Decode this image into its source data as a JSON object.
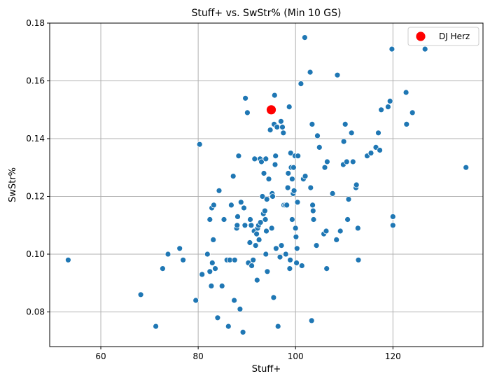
{
  "chart_data": {
    "type": "scatter",
    "title": "Stuff+ vs. SwStr% (Min 10 GS)",
    "xlabel": "Stuff+",
    "ylabel": "SwStr%",
    "xlim": [
      49.5,
      138.5
    ],
    "ylim": [
      0.068,
      0.18
    ],
    "xticks": [
      60,
      80,
      100,
      120
    ],
    "yticks": [
      0.08,
      0.1,
      0.12,
      0.14,
      0.16,
      0.18
    ],
    "ytick_labels": [
      "0.08",
      "0.10",
      "0.12",
      "0.14",
      "0.16",
      "0.18"
    ],
    "grid": true,
    "legend_position": "top-right",
    "point_color": "#1f77b4",
    "highlight_color": "#ff0000",
    "highlight": {
      "name": "DJ Herz",
      "x": 95.0,
      "y": 0.15
    },
    "points": [
      [
        53.3,
        0.098
      ],
      [
        68.2,
        0.086
      ],
      [
        71.3,
        0.075
      ],
      [
        72.7,
        0.095
      ],
      [
        73.8,
        0.1
      ],
      [
        76.2,
        0.102
      ],
      [
        76.9,
        0.098
      ],
      [
        79.5,
        0.084
      ],
      [
        80.3,
        0.138
      ],
      [
        80.8,
        0.093
      ],
      [
        81.9,
        0.1
      ],
      [
        82.4,
        0.094
      ],
      [
        82.4,
        0.112
      ],
      [
        82.7,
        0.089
      ],
      [
        82.8,
        0.116
      ],
      [
        82.9,
        0.097
      ],
      [
        83.1,
        0.105
      ],
      [
        83.2,
        0.117
      ],
      [
        83.5,
        0.095
      ],
      [
        84.0,
        0.078
      ],
      [
        84.3,
        0.122
      ],
      [
        84.9,
        0.089
      ],
      [
        85.3,
        0.112
      ],
      [
        85.9,
        0.098
      ],
      [
        86.2,
        0.075
      ],
      [
        86.5,
        0.098
      ],
      [
        86.8,
        0.117
      ],
      [
        87.2,
        0.127
      ],
      [
        87.4,
        0.084
      ],
      [
        87.5,
        0.098
      ],
      [
        87.9,
        0.109
      ],
      [
        88.0,
        0.11
      ],
      [
        88.1,
        0.113
      ],
      [
        88.3,
        0.134
      ],
      [
        88.6,
        0.081
      ],
      [
        88.8,
        0.118
      ],
      [
        89.2,
        0.073
      ],
      [
        89.4,
        0.116
      ],
      [
        89.6,
        0.11
      ],
      [
        89.7,
        0.154
      ],
      [
        90.1,
        0.149
      ],
      [
        90.3,
        0.097
      ],
      [
        90.6,
        0.104
      ],
      [
        90.7,
        0.112
      ],
      [
        90.9,
        0.11
      ],
      [
        91.0,
        0.096
      ],
      [
        91.3,
        0.098
      ],
      [
        91.5,
        0.108
      ],
      [
        91.6,
        0.133
      ],
      [
        91.8,
        0.103
      ],
      [
        92.0,
        0.107
      ],
      [
        92.1,
        0.091
      ],
      [
        92.2,
        0.109
      ],
      [
        92.4,
        0.11
      ],
      [
        92.5,
        0.105
      ],
      [
        92.7,
        0.133
      ],
      [
        92.8,
        0.111
      ],
      [
        93.0,
        0.132
      ],
      [
        93.2,
        0.12
      ],
      [
        93.4,
        0.114
      ],
      [
        93.5,
        0.128
      ],
      [
        93.7,
        0.115
      ],
      [
        93.8,
        0.112
      ],
      [
        93.9,
        0.133
      ],
      [
        93.9,
        0.1
      ],
      [
        94.0,
        0.108
      ],
      [
        94.1,
        0.119
      ],
      [
        94.2,
        0.094
      ],
      [
        94.5,
        0.126
      ],
      [
        94.8,
        0.143
      ],
      [
        95.1,
        0.109
      ],
      [
        95.2,
        0.121
      ],
      [
        95.3,
        0.12
      ],
      [
        95.5,
        0.085
      ],
      [
        95.6,
        0.145
      ],
      [
        95.7,
        0.155
      ],
      [
        95.8,
        0.131
      ],
      [
        95.9,
        0.134
      ],
      [
        96.0,
        0.102
      ],
      [
        96.2,
        0.144
      ],
      [
        96.4,
        0.075
      ],
      [
        96.8,
        0.099
      ],
      [
        97.0,
        0.146
      ],
      [
        97.1,
        0.103
      ],
      [
        97.3,
        0.144
      ],
      [
        97.5,
        0.142
      ],
      [
        97.6,
        0.117
      ],
      [
        97.9,
        0.117
      ],
      [
        98.0,
        0.1
      ],
      [
        98.2,
        0.117
      ],
      [
        98.4,
        0.123
      ],
      [
        98.5,
        0.128
      ],
      [
        98.7,
        0.151
      ],
      [
        98.8,
        0.095
      ],
      [
        98.9,
        0.098
      ],
      [
        99.0,
        0.135
      ],
      [
        99.1,
        0.13
      ],
      [
        99.3,
        0.112
      ],
      [
        99.3,
        0.126
      ],
      [
        99.5,
        0.121
      ],
      [
        99.6,
        0.13
      ],
      [
        99.7,
        0.122
      ],
      [
        99.7,
        0.122
      ],
      [
        99.9,
        0.134
      ],
      [
        100.0,
        0.109
      ],
      [
        100.1,
        0.106
      ],
      [
        100.2,
        0.097
      ],
      [
        100.3,
        0.102
      ],
      [
        100.4,
        0.118
      ],
      [
        100.5,
        0.134
      ],
      [
        101.1,
        0.159
      ],
      [
        101.3,
        0.096
      ],
      [
        101.6,
        0.126
      ],
      [
        101.9,
        0.175
      ],
      [
        102.0,
        0.127
      ],
      [
        103.0,
        0.163
      ],
      [
        103.1,
        0.123
      ],
      [
        103.3,
        0.077
      ],
      [
        103.4,
        0.145
      ],
      [
        103.5,
        0.117
      ],
      [
        103.6,
        0.115
      ],
      [
        103.7,
        0.112
      ],
      [
        104.3,
        0.103
      ],
      [
        104.5,
        0.141
      ],
      [
        104.9,
        0.137
      ],
      [
        105.8,
        0.107
      ],
      [
        106.0,
        0.13
      ],
      [
        106.3,
        0.108
      ],
      [
        106.4,
        0.095
      ],
      [
        106.5,
        0.132
      ],
      [
        107.6,
        0.121
      ],
      [
        108.4,
        0.105
      ],
      [
        108.6,
        0.162
      ],
      [
        109.2,
        0.108
      ],
      [
        109.8,
        0.131
      ],
      [
        109.9,
        0.139
      ],
      [
        110.2,
        0.145
      ],
      [
        110.5,
        0.132
      ],
      [
        110.7,
        0.112
      ],
      [
        110.9,
        0.119
      ],
      [
        111.5,
        0.142
      ],
      [
        111.8,
        0.132
      ],
      [
        112.4,
        0.123
      ],
      [
        112.5,
        0.124
      ],
      [
        112.8,
        0.109
      ],
      [
        112.9,
        0.098
      ],
      [
        114.7,
        0.134
      ],
      [
        115.5,
        0.135
      ],
      [
        116.5,
        0.137
      ],
      [
        117.0,
        0.142
      ],
      [
        117.3,
        0.136
      ],
      [
        117.6,
        0.15
      ],
      [
        119.0,
        0.151
      ],
      [
        119.4,
        0.153
      ],
      [
        119.8,
        0.171
      ],
      [
        120.0,
        0.113
      ],
      [
        120.0,
        0.11
      ],
      [
        122.7,
        0.156
      ],
      [
        122.8,
        0.145
      ],
      [
        124.0,
        0.149
      ],
      [
        126.6,
        0.171
      ],
      [
        135.0,
        0.13
      ]
    ]
  }
}
